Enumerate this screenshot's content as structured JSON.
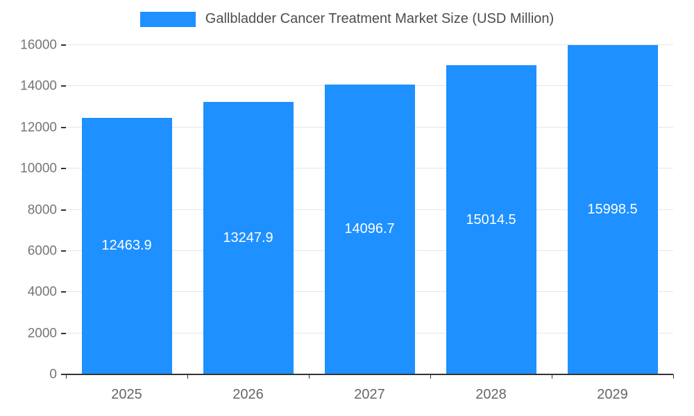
{
  "chart_data": {
    "type": "bar",
    "title": "Gallbladder Cancer Treatment Market Size (USD Million)",
    "categories": [
      "2025",
      "2026",
      "2027",
      "2028",
      "2029"
    ],
    "series": [
      {
        "name": "Gallbladder Cancer Treatment Market Size (USD Million)",
        "values": [
          12463.9,
          13247.9,
          14096.7,
          15014.5,
          15998.5
        ]
      }
    ],
    "values": [
      12463.9,
      13247.9,
      14096.7,
      15014.5,
      15998.5
    ],
    "bar_labels": [
      "12463.9",
      "13247.9",
      "14096.7",
      "15014.5",
      "15998.5"
    ],
    "xlabel": "",
    "ylabel": "",
    "ylim": [
      0,
      16000
    ],
    "ytick_step": 2000,
    "ytick_labels": [
      "0",
      "2000",
      "4000",
      "6000",
      "8000",
      "10000",
      "12000",
      "14000",
      "16000"
    ],
    "grid": true,
    "legend_position": "top",
    "colors": {
      "bar": "#1E90FF",
      "bar_label": "#FFFFFF",
      "grid_line": "#E6E6E6",
      "axis_line": "#333333",
      "y_tick_label": "#757575",
      "x_tick_label": "#666666",
      "legend_text": "#4D4D4D",
      "background": "#FFFFFF"
    }
  }
}
